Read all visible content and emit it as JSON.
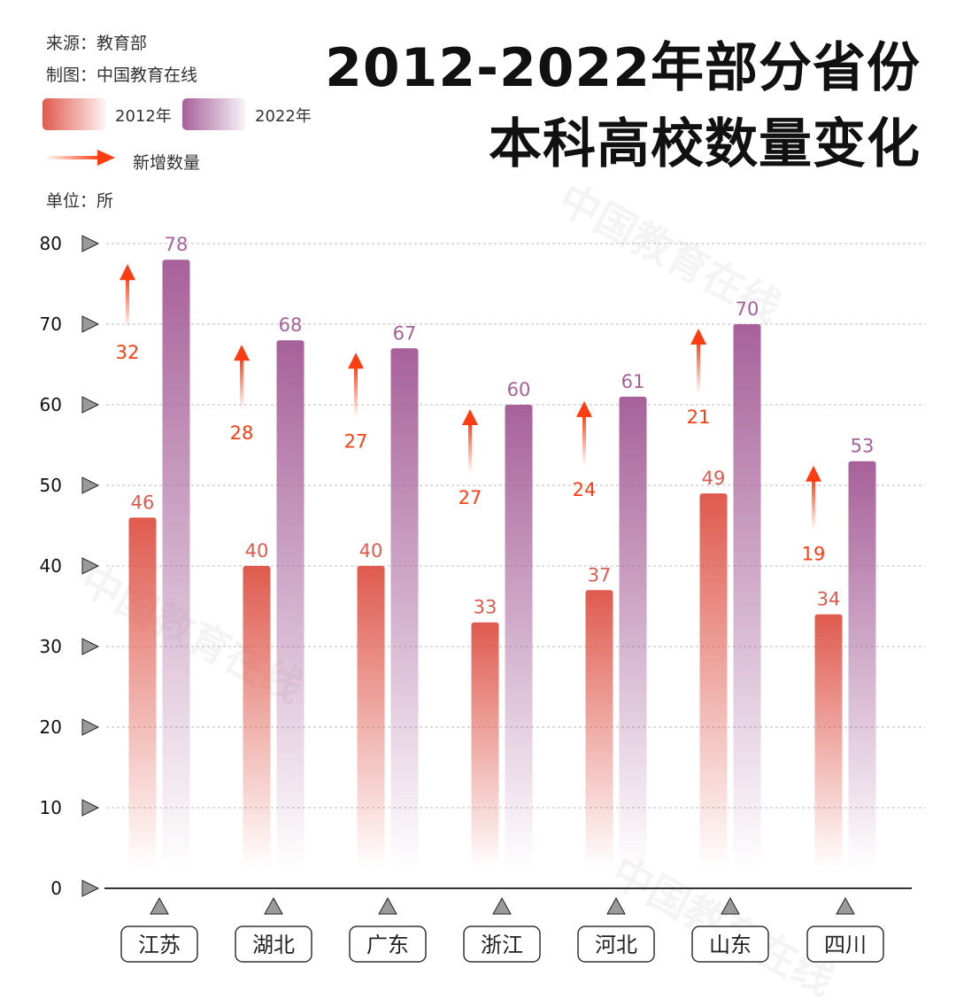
{
  "header": {
    "source": "来源：教育部",
    "maker": "制图：中国教育在线",
    "title_line1": "2012-2022年部分省份",
    "title_line2": "本科高校数量变化"
  },
  "legend": {
    "series_2012": "2012年",
    "series_2022": "2022年",
    "increase": "新增数量"
  },
  "unit": "单位：所",
  "watermark": "中国教育在线",
  "colors": {
    "bar_2012": "#df5a4e",
    "bar_2022": "#a7619a",
    "increase": "#ff3d12",
    "axis": "#333333",
    "grid": "#bbbbbb"
  },
  "chart_data": {
    "type": "bar",
    "categories": [
      "江苏",
      "湖北",
      "广东",
      "浙江",
      "河北",
      "山东",
      "四川"
    ],
    "series": [
      {
        "name": "2012年",
        "values": [
          46,
          40,
          40,
          33,
          37,
          49,
          34
        ]
      },
      {
        "name": "2022年",
        "values": [
          78,
          68,
          67,
          60,
          61,
          70,
          53
        ]
      }
    ],
    "increase": [
      32,
      28,
      27,
      27,
      24,
      21,
      19
    ],
    "ylim": [
      0,
      80
    ],
    "yticks": [
      0,
      10,
      20,
      30,
      40,
      50,
      60,
      70,
      80
    ],
    "grid": true,
    "legend_position": "top-left"
  }
}
